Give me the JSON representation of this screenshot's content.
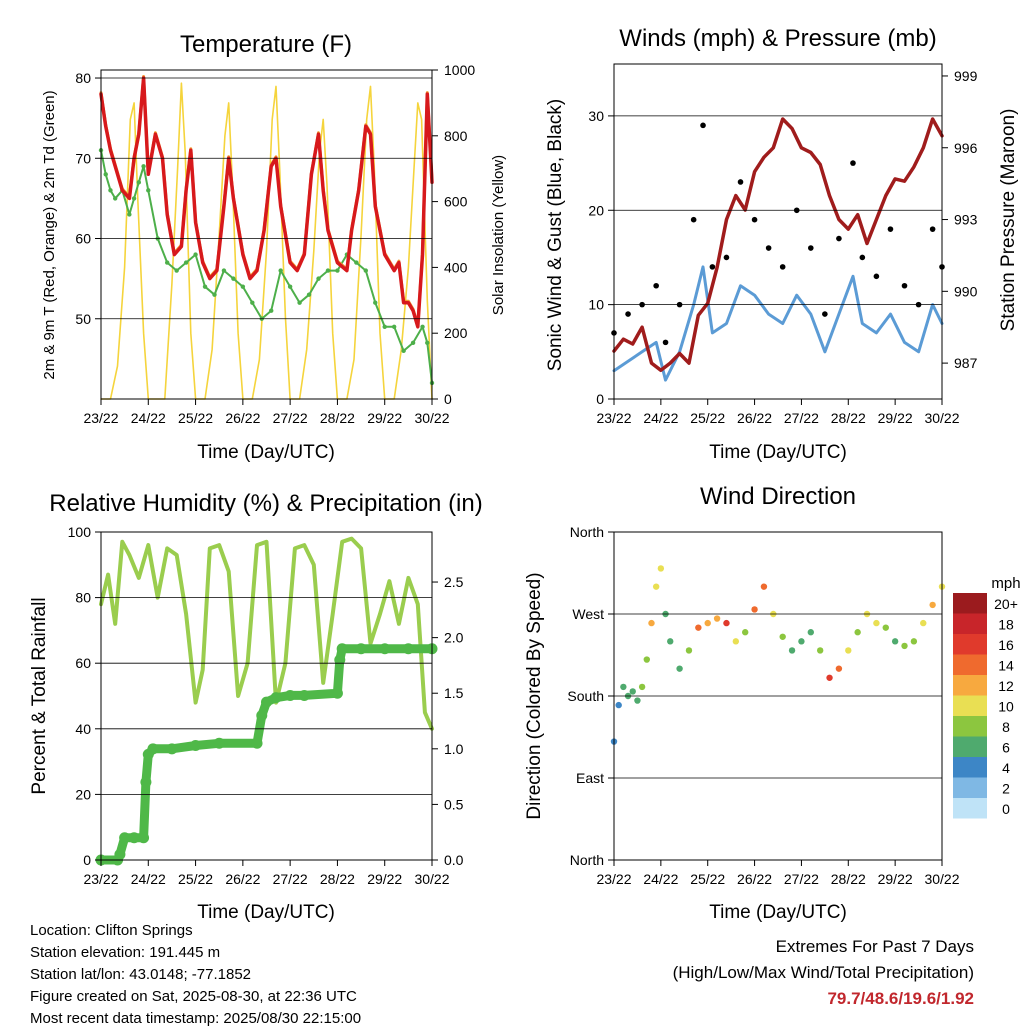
{
  "temperature_panel": {
    "title": "Temperature (F)",
    "xlabel": "Time (Day/UTC)",
    "ylabel_left": "2m & 9m T (Red, Orange) & 2m Td (Green)",
    "ylabel_right": "Solar Insolation (Yellow)"
  },
  "wind_panel": {
    "title": "Winds (mph) & Pressure (mb)",
    "xlabel": "Time (Day/UTC)",
    "ylabel_left": "Sonic Wind & Gust (Blue, Black)",
    "ylabel_right": "Station Pressure (Maroon)"
  },
  "rh_panel": {
    "title": "Relative Humidity (%) & Precipitation (in)",
    "xlabel": "Time (Day/UTC)",
    "ylabel_left": "Percent & Total Rainfall"
  },
  "dir_panel": {
    "title": "Wind Direction",
    "xlabel": "Time (Day/UTC)",
    "ylabel_left": "Direction (Colored By Speed)",
    "legend_title": "mph"
  },
  "station_info": {
    "location": "Location: Clifton Springs",
    "elevation": "Station elevation: 191.445 m",
    "latlon": "Station lat/lon: 43.0148; -77.1852",
    "created": "Figure created on Sat, 2025-08-30, at 22:36 UTC",
    "latest": "Most recent data timestamp: 2025/08/30 22:15:00"
  },
  "extremes": {
    "line1": "Extremes For Past 7 Days",
    "line2": "(High/Low/Max Wind/Total Precipitation)",
    "values": "79.7/48.6/19.6/1.92"
  },
  "chart_data": [
    {
      "type": "line",
      "title": "Temperature (F)",
      "xlabel": "Time (Day/UTC)",
      "ylabel": "2m & 9m T (Red, Orange) & 2m Td (Green)",
      "ylabel_right": "Solar Insolation (Yellow)",
      "x_tick_labels": [
        "23/22",
        "24/22",
        "25/22",
        "26/22",
        "27/22",
        "28/22",
        "29/22",
        "30/22"
      ],
      "xlim": [
        0,
        7
      ],
      "ylim": [
        40,
        81
      ],
      "y_ticks": [
        50,
        60,
        70,
        80
      ],
      "y2lim": [
        0,
        1000
      ],
      "y2_ticks": [
        0,
        200,
        400,
        600,
        800,
        1000
      ],
      "grid": true,
      "colors": {
        "temp2m": "#d7191c",
        "temp9m": "#f39c33",
        "dewpoint": "#4daf4a",
        "solar": "#f5d43c"
      },
      "series": [
        {
          "name": "2m T",
          "x": [
            0,
            0.1,
            0.2,
            0.3,
            0.45,
            0.6,
            0.7,
            0.8,
            0.9,
            1,
            1.15,
            1.3,
            1.4,
            1.55,
            1.7,
            1.8,
            1.9,
            2,
            2.15,
            2.3,
            2.45,
            2.6,
            2.7,
            2.8,
            3,
            3.15,
            3.3,
            3.45,
            3.6,
            3.7,
            3.8,
            4,
            4.15,
            4.3,
            4.45,
            4.6,
            4.7,
            4.8,
            5,
            5.2,
            5.3,
            5.45,
            5.6,
            5.7,
            5.8,
            6,
            6.2,
            6.3,
            6.4,
            6.5,
            6.6,
            6.7,
            6.8,
            6.9,
            7
          ],
          "values": [
            78,
            74,
            71,
            69,
            66,
            65,
            70,
            73,
            80,
            68,
            73,
            70,
            63,
            58,
            59,
            66,
            71,
            62,
            57,
            55,
            56,
            64,
            70,
            65,
            58,
            55,
            56,
            61,
            69,
            70,
            64,
            57,
            56,
            58,
            68,
            73,
            66,
            61,
            57,
            56,
            61,
            66,
            74,
            73,
            64,
            58,
            56,
            57,
            52,
            52,
            51,
            49,
            58,
            78,
            67
          ]
        },
        {
          "name": "Td",
          "x": [
            0,
            0.1,
            0.2,
            0.3,
            0.45,
            0.6,
            0.7,
            0.8,
            0.9,
            1,
            1.2,
            1.4,
            1.6,
            1.8,
            2,
            2.2,
            2.4,
            2.6,
            2.8,
            3,
            3.2,
            3.4,
            3.6,
            3.8,
            4,
            4.2,
            4.4,
            4.6,
            4.8,
            5,
            5.2,
            5.4,
            5.6,
            5.8,
            6,
            6.2,
            6.4,
            6.6,
            6.8,
            6.9,
            7
          ],
          "values": [
            71,
            68,
            66,
            65,
            66,
            63,
            65,
            67,
            69,
            66,
            60,
            57,
            56,
            57,
            58,
            54,
            53,
            56,
            55,
            54,
            52,
            50,
            51,
            56,
            54,
            52,
            53,
            55,
            56,
            56,
            58,
            57,
            56,
            52,
            49,
            49,
            46,
            47,
            49,
            47,
            42
          ]
        },
        {
          "name": "Solar",
          "y_axis": "right",
          "x": [
            0,
            0.2,
            0.35,
            0.5,
            0.62,
            0.7,
            0.78,
            0.9,
            1,
            1.2,
            1.35,
            1.5,
            1.62,
            1.7,
            1.78,
            1.9,
            2,
            2.2,
            2.35,
            2.5,
            2.62,
            2.7,
            2.78,
            2.9,
            3,
            3.2,
            3.35,
            3.5,
            3.62,
            3.7,
            3.78,
            3.9,
            4,
            4.2,
            4.35,
            4.5,
            4.62,
            4.7,
            4.78,
            4.9,
            5,
            5.2,
            5.35,
            5.5,
            5.62,
            5.7,
            5.78,
            5.9,
            6,
            6.2,
            6.35,
            6.5,
            6.62,
            6.7,
            6.78,
            6.9,
            7
          ],
          "values": [
            0,
            0,
            100,
            400,
            850,
            900,
            600,
            200,
            0,
            0,
            0,
            350,
            700,
            960,
            750,
            200,
            0,
            0,
            150,
            500,
            800,
            900,
            650,
            200,
            0,
            0,
            120,
            450,
            850,
            950,
            700,
            250,
            0,
            0,
            150,
            450,
            750,
            850,
            650,
            200,
            0,
            0,
            120,
            500,
            850,
            950,
            700,
            200,
            0,
            0,
            150,
            400,
            700,
            900,
            850,
            300,
            0
          ]
        }
      ]
    },
    {
      "type": "line",
      "title": "Winds (mph) & Pressure (mb)",
      "xlabel": "Time (Day/UTC)",
      "ylabel": "Sonic Wind & Gust (Blue, Black)",
      "ylabel_right": "Station Pressure (Maroon)",
      "x_tick_labels": [
        "23/22",
        "24/22",
        "25/22",
        "26/22",
        "27/22",
        "28/22",
        "29/22",
        "30/22"
      ],
      "xlim": [
        0,
        7
      ],
      "ylim": [
        0,
        35.5
      ],
      "y_ticks": [
        0,
        10,
        20,
        30
      ],
      "y2lim": [
        985.5,
        999.5
      ],
      "y2_ticks": [
        987,
        990,
        993,
        996,
        999
      ],
      "grid": true,
      "colors": {
        "wind": "#5b9bd5",
        "gust": "#000000",
        "pressure": "#a01c1c"
      },
      "series": [
        {
          "name": "Gust",
          "x": [
            0,
            0.3,
            0.6,
            0.9,
            1.1,
            1.4,
            1.7,
            1.9,
            2.1,
            2.4,
            2.7,
            3,
            3.3,
            3.6,
            3.9,
            4.2,
            4.5,
            4.8,
            5.1,
            5.3,
            5.6,
            5.9,
            6.2,
            6.5,
            6.8,
            7
          ],
          "values": [
            7,
            9,
            10,
            12,
            6,
            10,
            19,
            29,
            14,
            15,
            23,
            19,
            16,
            14,
            20,
            16,
            9,
            17,
            25,
            15,
            13,
            18,
            12,
            10,
            18,
            14
          ]
        },
        {
          "name": "Wind",
          "x": [
            0,
            0.3,
            0.6,
            0.9,
            1.1,
            1.4,
            1.7,
            1.9,
            2.1,
            2.4,
            2.7,
            3,
            3.3,
            3.6,
            3.9,
            4.2,
            4.5,
            4.8,
            5.1,
            5.3,
            5.6,
            5.9,
            6.2,
            6.5,
            6.8,
            7
          ],
          "values": [
            3,
            4,
            5,
            6,
            2,
            5,
            10,
            14,
            7,
            8,
            12,
            11,
            9,
            8,
            11,
            9,
            5,
            9,
            13,
            8,
            7,
            9,
            6,
            5,
            10,
            8
          ]
        },
        {
          "name": "Pressure",
          "y_axis": "right",
          "x": [
            0,
            0.2,
            0.4,
            0.6,
            0.8,
            1,
            1.2,
            1.4,
            1.6,
            1.8,
            2,
            2.2,
            2.4,
            2.6,
            2.8,
            3,
            3.2,
            3.4,
            3.6,
            3.8,
            4,
            4.2,
            4.4,
            4.6,
            4.8,
            5,
            5.2,
            5.4,
            5.6,
            5.8,
            6,
            6.2,
            6.4,
            6.6,
            6.8,
            7
          ],
          "values": [
            987.5,
            988,
            987.8,
            988.5,
            987,
            986.7,
            987,
            987.4,
            987,
            989,
            989.5,
            991,
            993,
            994,
            993.4,
            995,
            995.6,
            996,
            997.2,
            996.8,
            996,
            995.8,
            995.3,
            994,
            993,
            992.6,
            993.2,
            992,
            993,
            994,
            994.7,
            994.6,
            995.2,
            996,
            997.2,
            996.5
          ]
        }
      ]
    },
    {
      "type": "line",
      "title": "Relative Humidity (%) & Precipitation (in)",
      "xlabel": "Time (Day/UTC)",
      "ylabel": "Percent & Total Rainfall",
      "x_tick_labels": [
        "23/22",
        "24/22",
        "25/22",
        "26/22",
        "27/22",
        "28/22",
        "29/22",
        "30/22"
      ],
      "xlim": [
        0,
        7
      ],
      "ylim": [
        0,
        100
      ],
      "y_ticks": [
        0,
        20,
        40,
        60,
        80,
        100
      ],
      "y2lim": [
        0,
        2.95
      ],
      "y2_ticks": [
        0.0,
        0.5,
        1.0,
        1.5,
        2.0,
        2.5
      ],
      "grid": true,
      "colors": {
        "rh": "#9acd4e",
        "precip": "#4fb848"
      },
      "series": [
        {
          "name": "RH",
          "x": [
            0,
            0.15,
            0.3,
            0.45,
            0.6,
            0.8,
            1,
            1.2,
            1.4,
            1.6,
            1.8,
            2,
            2.15,
            2.3,
            2.5,
            2.7,
            2.9,
            3.1,
            3.3,
            3.5,
            3.7,
            3.9,
            4.1,
            4.3,
            4.5,
            4.7,
            4.9,
            5.1,
            5.3,
            5.5,
            5.7,
            5.9,
            6.1,
            6.3,
            6.5,
            6.7,
            6.85,
            7
          ],
          "values": [
            78,
            87,
            72,
            97,
            93,
            86,
            96,
            80,
            95,
            93,
            75,
            48,
            58,
            95,
            96,
            88,
            50,
            60,
            96,
            97,
            48,
            60,
            95,
            96,
            90,
            54,
            75,
            97,
            98,
            95,
            66,
            75,
            85,
            72,
            86,
            78,
            45,
            40
          ]
        },
        {
          "name": "Precip",
          "y_axis": "right",
          "x": [
            0,
            0.35,
            0.4,
            0.5,
            0.7,
            0.9,
            0.95,
            1.0,
            1.1,
            1.5,
            2.0,
            2.5,
            3.3,
            3.4,
            3.5,
            3.7,
            4.0,
            4.3,
            5.0,
            5.05,
            5.1,
            5.5,
            6.0,
            6.5,
            7
          ],
          "values": [
            0,
            0,
            0.05,
            0.2,
            0.2,
            0.2,
            0.7,
            0.95,
            1.0,
            1.0,
            1.03,
            1.05,
            1.05,
            1.3,
            1.42,
            1.46,
            1.48,
            1.48,
            1.5,
            1.8,
            1.9,
            1.9,
            1.9,
            1.9,
            1.9
          ]
        }
      ]
    },
    {
      "type": "scatter",
      "title": "Wind Direction",
      "xlabel": "Time (Day/UTC)",
      "ylabel": "Direction (Colored By Speed)",
      "x_tick_labels": [
        "23/22",
        "24/22",
        "25/22",
        "26/22",
        "27/22",
        "28/22",
        "29/22",
        "30/22"
      ],
      "xlim": [
        0,
        7
      ],
      "y_tick_labels": [
        "North",
        "East",
        "South",
        "West",
        "North"
      ],
      "ylim": [
        0,
        360
      ],
      "legend_title": "mph",
      "legend_labels": [
        "20+",
        "18",
        "16",
        "14",
        "12",
        "10",
        "8",
        "6",
        "4",
        "2",
        "0"
      ],
      "legend_colors": [
        "#9b1b1e",
        "#c8252a",
        "#e03a2c",
        "#ef6a2e",
        "#f7a93f",
        "#e9df53",
        "#8cc63f",
        "#4faa6e",
        "#3d86c6",
        "#7fb8e4",
        "#bfe3f7"
      ],
      "grid": true,
      "series": [
        {
          "name": "Direction",
          "x": [
            0,
            0.1,
            0.2,
            0.3,
            0.4,
            0.5,
            0.6,
            0.7,
            0.8,
            0.9,
            1,
            1.1,
            1.2,
            1.4,
            1.6,
            1.8,
            2,
            2.2,
            2.4,
            2.6,
            2.8,
            3,
            3.2,
            3.4,
            3.6,
            3.8,
            4,
            4.2,
            4.4,
            4.6,
            4.8,
            5,
            5.2,
            5.4,
            5.6,
            5.8,
            6,
            6.2,
            6.4,
            6.6,
            6.8,
            7
          ],
          "values": [
            130,
            170,
            190,
            180,
            185,
            175,
            190,
            220,
            260,
            300,
            320,
            270,
            240,
            210,
            230,
            255,
            260,
            265,
            260,
            240,
            250,
            275,
            300,
            270,
            245,
            230,
            240,
            250,
            230,
            200,
            210,
            230,
            250,
            270,
            260,
            255,
            240,
            235,
            240,
            260,
            280,
            300
          ],
          "speeds": [
            3,
            4,
            5,
            5,
            6,
            5,
            7,
            8,
            12,
            10,
            9,
            6,
            5,
            5,
            8,
            14,
            12,
            11,
            15,
            9,
            8,
            13,
            14,
            9,
            7,
            6,
            6,
            5,
            8,
            16,
            14,
            9,
            8,
            10,
            9,
            8,
            6,
            7,
            8,
            10,
            11,
            9
          ]
        }
      ]
    }
  ]
}
